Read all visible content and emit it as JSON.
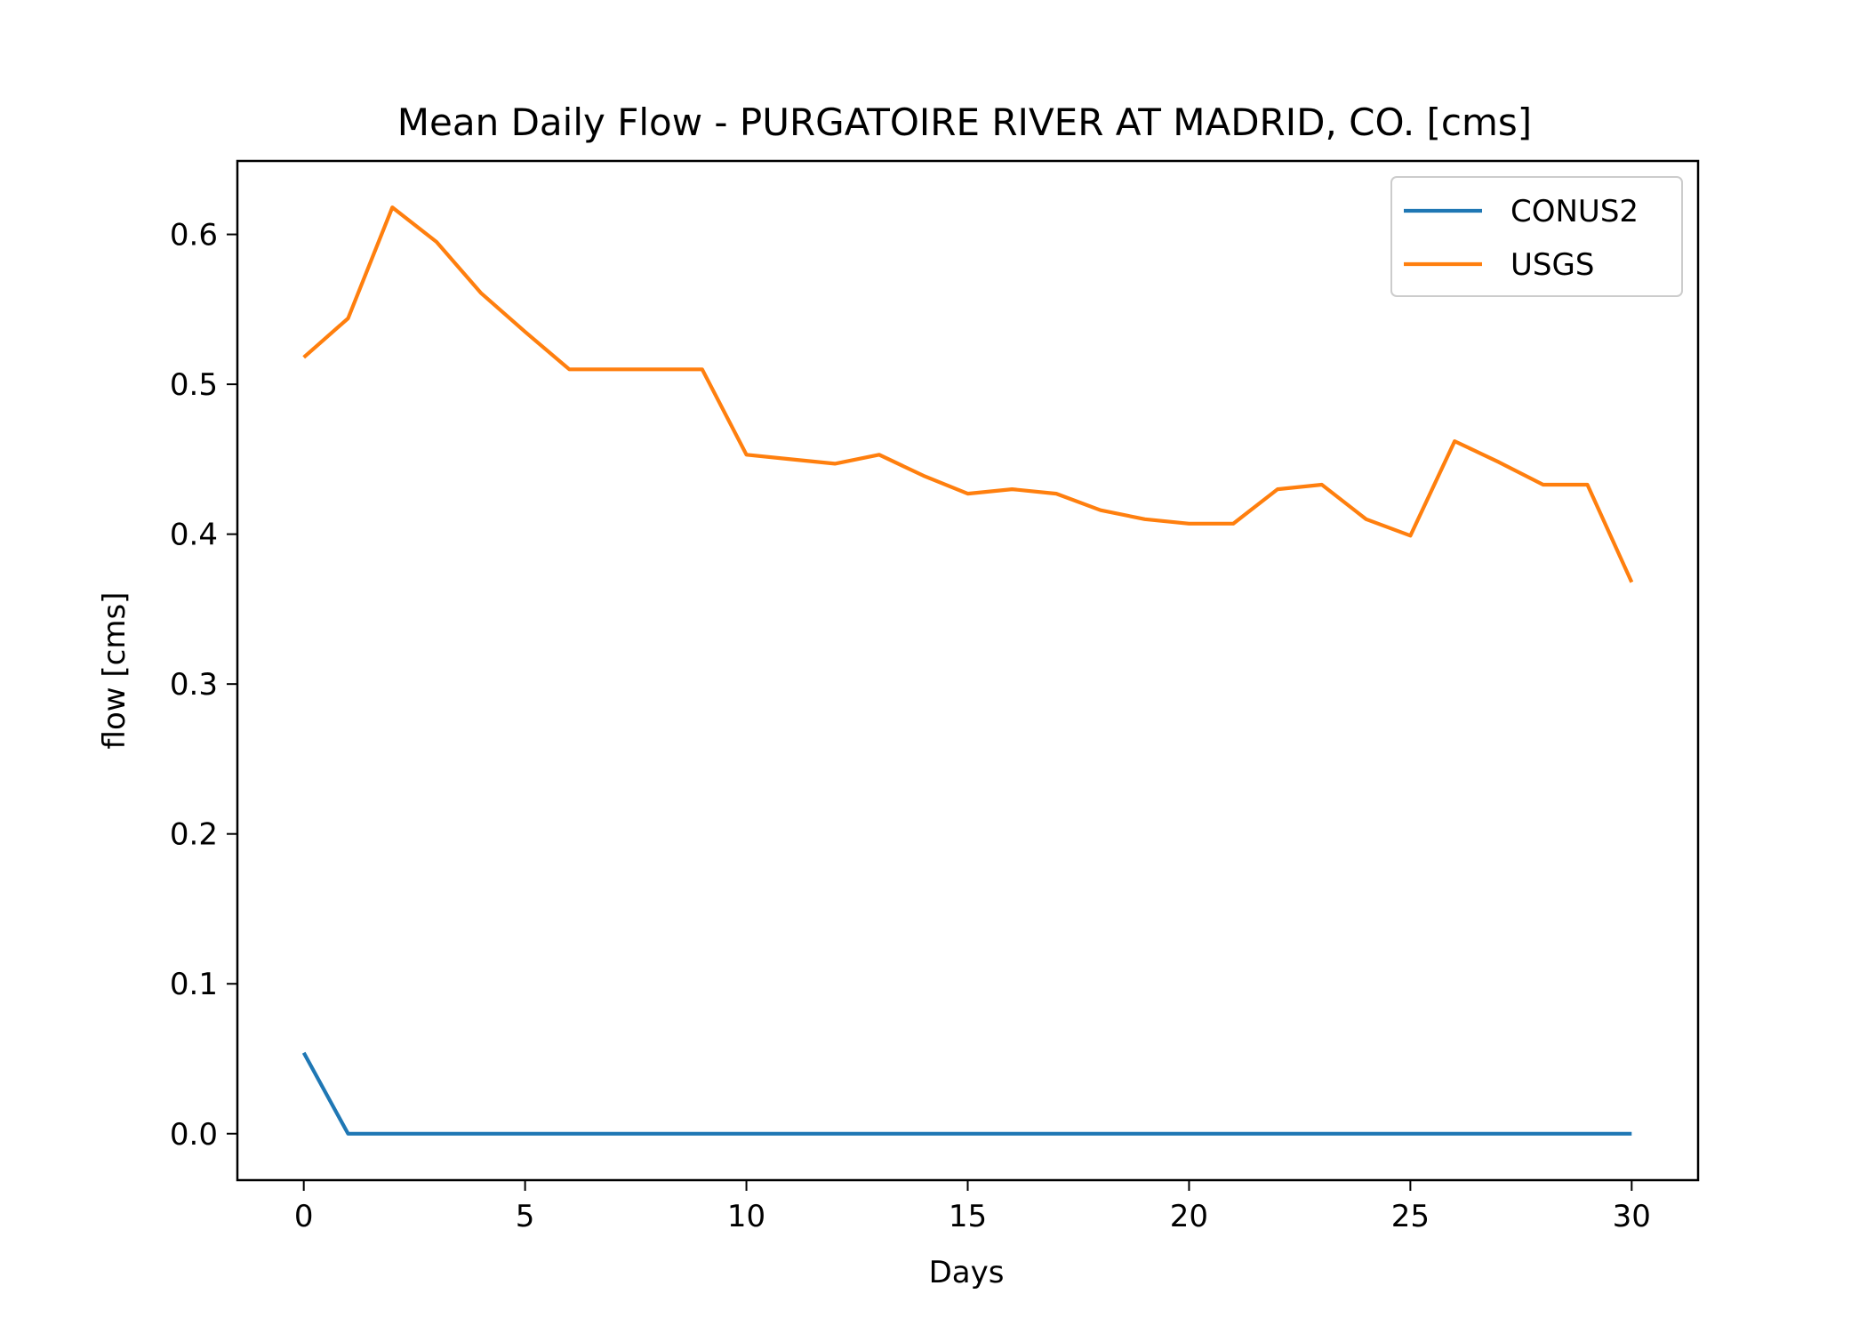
{
  "chart_data": {
    "type": "line",
    "title": "Mean Daily Flow - PURGATOIRE RIVER AT MADRID, CO. [cms]",
    "xlabel": "Days",
    "ylabel": "flow [cms]",
    "xlim": [
      -1.5,
      31.5
    ],
    "ylim": [
      -0.031,
      0.649
    ],
    "xticks": [
      0,
      5,
      10,
      15,
      20,
      25,
      30
    ],
    "xtick_labels": [
      "0",
      "5",
      "10",
      "15",
      "20",
      "25",
      "30"
    ],
    "yticks": [
      0.0,
      0.1,
      0.2,
      0.3,
      0.4,
      0.5,
      0.6
    ],
    "ytick_labels": [
      "0.0",
      "0.1",
      "0.2",
      "0.3",
      "0.4",
      "0.5",
      "0.6"
    ],
    "grid": false,
    "legend_position": "top-right",
    "x": [
      0,
      1,
      2,
      3,
      4,
      5,
      6,
      7,
      8,
      9,
      10,
      11,
      12,
      13,
      14,
      15,
      16,
      17,
      18,
      19,
      20,
      21,
      22,
      23,
      24,
      25,
      26,
      27,
      28,
      29,
      30
    ],
    "series": [
      {
        "name": "CONUS2",
        "color": "#1f77b4",
        "values": [
          0.054,
          0,
          0,
          0,
          0,
          0,
          0,
          0,
          0,
          0,
          0,
          0,
          0,
          0,
          0,
          0,
          0,
          0,
          0,
          0,
          0,
          0,
          0,
          0,
          0,
          0,
          0,
          0,
          0,
          0,
          0
        ]
      },
      {
        "name": "USGS",
        "color": "#ff7f0e",
        "values": [
          0.518,
          0.544,
          0.618,
          0.595,
          0.561,
          0.535,
          0.51,
          0.51,
          0.51,
          0.51,
          0.453,
          0.45,
          0.447,
          0.453,
          0.439,
          0.427,
          0.43,
          0.427,
          0.416,
          0.41,
          0.407,
          0.407,
          0.43,
          0.433,
          0.41,
          0.399,
          0.462,
          0.448,
          0.433,
          0.433,
          0.368
        ]
      }
    ]
  }
}
